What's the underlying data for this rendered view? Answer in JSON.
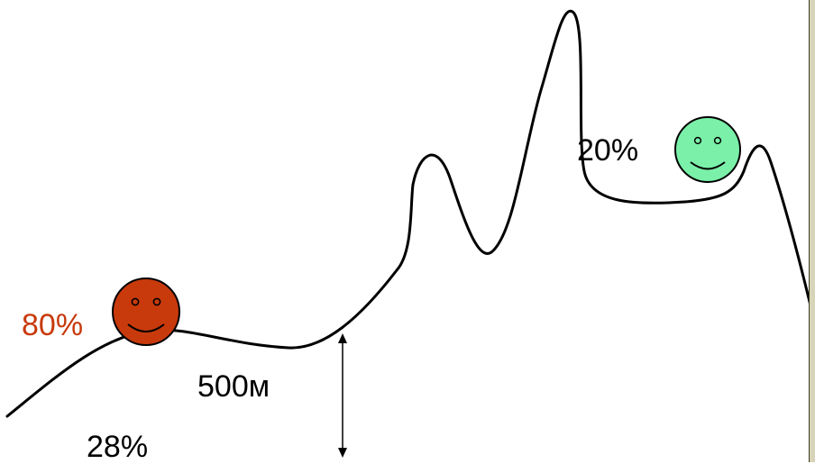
{
  "colors": {
    "curve": "#000000",
    "red_face": "#c83a0c",
    "red_text": "#c83a0c",
    "green_face": "#7af0a8",
    "text": "#000000"
  },
  "icons": {
    "red_face": "smiley-face-icon",
    "green_face": "smiley-face-icon",
    "arrow": "double-headed-arrow-icon"
  },
  "labels": {
    "red_percent": "80%",
    "green_percent": "20%",
    "height": "500м",
    "bottom_percent": "28%"
  }
}
